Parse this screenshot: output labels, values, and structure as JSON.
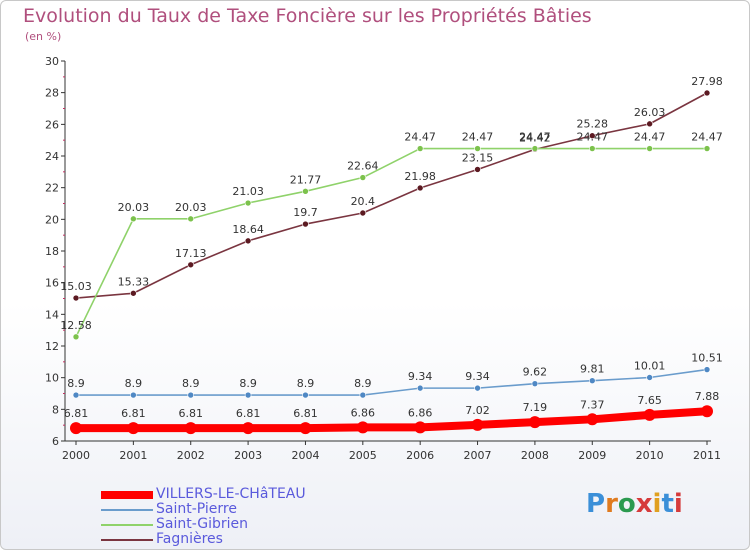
{
  "title": "Evolution du Taux de Taxe Foncière sur les Propriétés Bâties",
  "unit_label": "(en %)",
  "logo": {
    "text": "Proxiti",
    "colors": [
      "#3b8fd8",
      "#e07b1f",
      "#2b9a4f",
      "#d63b3b",
      "#e0a020",
      "#3b8fd8",
      "#d63b3b"
    ]
  },
  "chart_data": {
    "type": "line",
    "x": [
      "2000",
      "2001",
      "2002",
      "2003",
      "2004",
      "2005",
      "2006",
      "2007",
      "2008",
      "2009",
      "2010",
      "2011"
    ],
    "ylim": [
      6,
      30
    ],
    "yticks": [
      "6",
      "8",
      "10",
      "12",
      "14",
      "16",
      "18",
      "20",
      "22",
      "24",
      "26",
      "28",
      "30"
    ],
    "legend_position": "bottom-left",
    "series": [
      {
        "name": "Fagnières",
        "color": "#7a3540",
        "marker": "#5c1a22",
        "values": [
          15.03,
          15.33,
          17.13,
          18.64,
          19.7,
          20.4,
          21.98,
          23.15,
          24.42,
          25.28,
          26.03,
          27.98
        ],
        "labels": [
          "15.03",
          "15.33",
          "17.13",
          "18.64",
          "19.7",
          "20.4",
          "21.98",
          "23.15",
          "24.42",
          "25.28",
          "26.03",
          "27.98"
        ]
      },
      {
        "name": "Saint-Gibrien",
        "color": "#8fd26a",
        "marker": "#7cc24c",
        "values": [
          12.58,
          20.03,
          20.03,
          21.03,
          21.77,
          22.64,
          24.47,
          24.47,
          24.47,
          24.47,
          24.47,
          24.47
        ],
        "labels": [
          "12.58",
          "20.03",
          "20.03",
          "21.03",
          "21.77",
          "22.64",
          "24.47",
          "24.47",
          "24.47",
          "24.47",
          "24.47",
          "24.47"
        ]
      },
      {
        "name": "Saint-Pierre",
        "color": "#6a9ccc",
        "marker": "#4f88c4",
        "values": [
          8.9,
          8.9,
          8.9,
          8.9,
          8.9,
          8.9,
          9.34,
          9.34,
          9.62,
          9.81,
          10.01,
          10.51
        ],
        "labels": [
          "8.9",
          "8.9",
          "8.9",
          "8.9",
          "8.9",
          "8.9",
          "9.34",
          "9.34",
          "9.62",
          "9.81",
          "10.01",
          "10.51"
        ]
      },
      {
        "name": "VILLERS-LE-CHâTEAU",
        "color": "#ff0000",
        "marker": "#ff0000",
        "values": [
          6.81,
          6.81,
          6.81,
          6.81,
          6.81,
          6.86,
          6.86,
          7.02,
          7.19,
          7.37,
          7.65,
          7.88
        ],
        "labels": [
          "6.81",
          "6.81",
          "6.81",
          "6.81",
          "6.81",
          "6.86",
          "6.86",
          "7.02",
          "7.19",
          "7.37",
          "7.65",
          "7.88"
        ]
      }
    ],
    "legend": [
      {
        "label": "VILLERS-LE-CHâTEAU",
        "color": "#ff0000"
      },
      {
        "label": "Saint-Pierre",
        "color": "#6a9ccc"
      },
      {
        "label": "Saint-Gibrien",
        "color": "#8fd26a"
      },
      {
        "label": "Fagnières",
        "color": "#7a3540"
      }
    ]
  }
}
